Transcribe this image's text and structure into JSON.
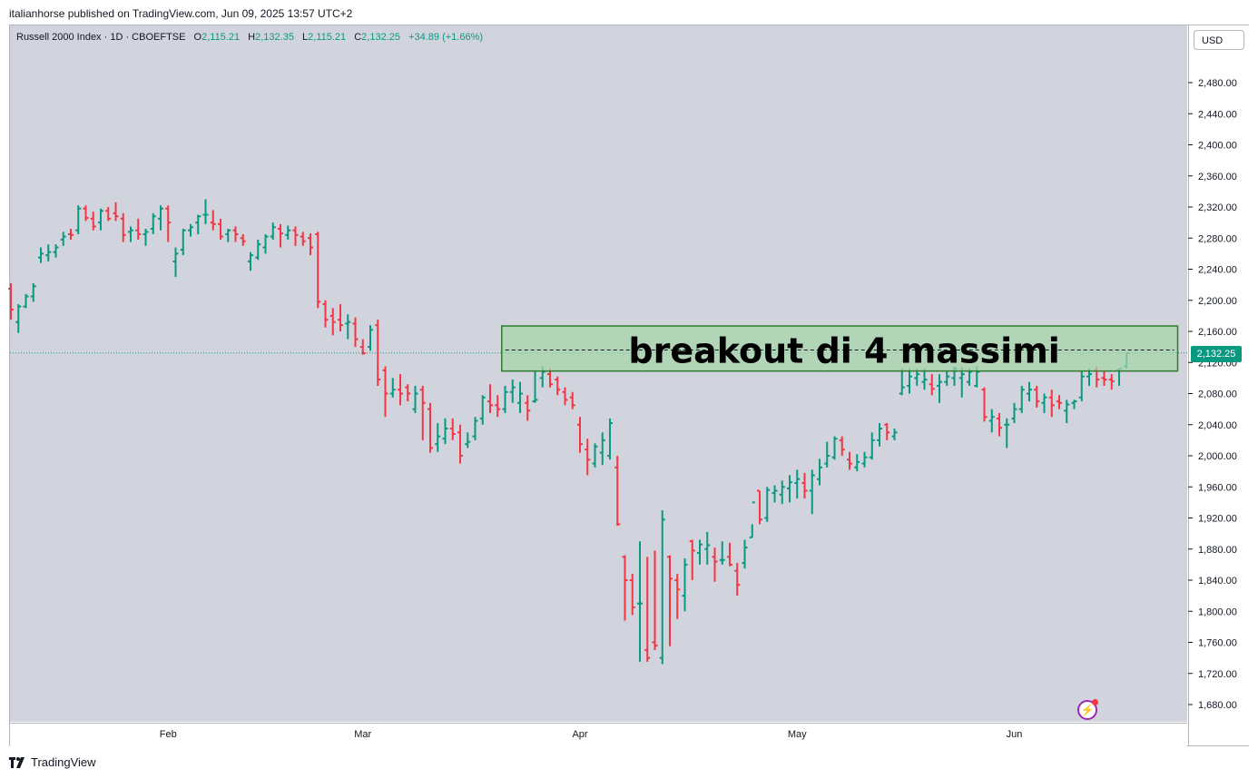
{
  "header": {
    "publisher": "italianhorse published on TradingView.com, Jun 09, 2025 13:57 UTC+2"
  },
  "legend": {
    "symbol": "Russell 2000 Index · 1D · CBOEFTSE",
    "o_label": "O",
    "o_value": "2,115.21",
    "h_label": "H",
    "h_value": "2,132.35",
    "l_label": "L",
    "l_value": "2,115.21",
    "c_label": "C",
    "c_value": "2,132.25",
    "change": "+34.89 (+1.66%)"
  },
  "currency_button": "USD",
  "last_price_tag": "2,132.25",
  "footer": {
    "brand": "TradingView"
  },
  "icons": {
    "alert": "lightning-icon",
    "logo": "tradingview-logo-icon"
  },
  "colors": {
    "up": "#089981",
    "down": "#f23645",
    "plot_bg": "#d1d4dc",
    "zone_fill": "#a5d6a7",
    "zone_border": "#2e7d32"
  },
  "chart_data": {
    "type": "ohlc-bar",
    "ylim": [
      1650,
      2520
    ],
    "y_ticks": [
      "2,480.00",
      "2,440.00",
      "2,400.00",
      "2,360.00",
      "2,320.00",
      "2,280.00",
      "2,240.00",
      "2,200.00",
      "2,160.00",
      "2,120.00",
      "2,080.00",
      "2,040.00",
      "2,000.00",
      "1,960.00",
      "1,920.00",
      "1,880.00",
      "1,840.00",
      "1,800.00",
      "1,760.00",
      "1,720.00",
      "1,680.00"
    ],
    "x_labels": [
      {
        "label": "Feb",
        "index": 21
      },
      {
        "label": "Mar",
        "index": 47
      },
      {
        "label": "Apr",
        "index": 76
      },
      {
        "label": "May",
        "index": 105
      },
      {
        "label": "Jun",
        "index": 134
      }
    ],
    "last_price": 2132.25,
    "annotation": {
      "text": "breakout di 4 massimi",
      "price_top": 2167,
      "price_bottom": 2109,
      "dashed_level": 2136,
      "start_index": 67,
      "end_index": 150
    },
    "bars": [
      [
        2215,
        2222,
        2175,
        2188
      ],
      [
        2172,
        2195,
        2158,
        2192
      ],
      [
        2192,
        2208,
        2190,
        2205
      ],
      [
        2205,
        2222,
        2198,
        2218
      ],
      [
        2255,
        2268,
        2248,
        2260
      ],
      [
        2258,
        2272,
        2250,
        2262
      ],
      [
        2262,
        2272,
        2255,
        2268
      ],
      [
        2278,
        2288,
        2270,
        2282
      ],
      [
        2285,
        2292,
        2278,
        2284
      ],
      [
        2290,
        2322,
        2285,
        2318
      ],
      [
        2318,
        2322,
        2302,
        2306
      ],
      [
        2305,
        2314,
        2290,
        2295
      ],
      [
        2300,
        2318,
        2290,
        2315
      ],
      [
        2315,
        2320,
        2302,
        2305
      ],
      [
        2312,
        2326,
        2302,
        2308
      ],
      [
        2305,
        2312,
        2275,
        2284
      ],
      [
        2288,
        2295,
        2275,
        2290
      ],
      [
        2290,
        2305,
        2278,
        2285
      ],
      [
        2285,
        2292,
        2270,
        2288
      ],
      [
        2292,
        2312,
        2285,
        2308
      ],
      [
        2305,
        2322,
        2290,
        2318
      ],
      [
        2318,
        2322,
        2275,
        2300
      ],
      [
        2250,
        2268,
        2230,
        2260
      ],
      [
        2265,
        2292,
        2258,
        2290
      ],
      [
        2290,
        2298,
        2282,
        2294
      ],
      [
        2300,
        2310,
        2285,
        2308
      ],
      [
        2310,
        2330,
        2298,
        2310
      ],
      [
        2300,
        2316,
        2290,
        2298
      ],
      [
        2298,
        2305,
        2278,
        2282
      ],
      [
        2285,
        2292,
        2275,
        2290
      ],
      [
        2290,
        2295,
        2275,
        2285
      ],
      [
        2280,
        2285,
        2270,
        2276
      ],
      [
        2250,
        2262,
        2238,
        2258
      ],
      [
        2255,
        2278,
        2252,
        2272
      ],
      [
        2268,
        2285,
        2260,
        2282
      ],
      [
        2282,
        2300,
        2278,
        2294
      ],
      [
        2292,
        2298,
        2268,
        2286
      ],
      [
        2284,
        2296,
        2278,
        2290
      ],
      [
        2290,
        2295,
        2270,
        2284
      ],
      [
        2282,
        2288,
        2270,
        2276
      ],
      [
        2280,
        2286,
        2258,
        2268
      ],
      [
        2285,
        2288,
        2190,
        2198
      ],
      [
        2195,
        2200,
        2165,
        2175
      ],
      [
        2180,
        2190,
        2155,
        2172
      ],
      [
        2175,
        2195,
        2160,
        2168
      ],
      [
        2170,
        2182,
        2150,
        2172
      ],
      [
        2170,
        2178,
        2140,
        2150
      ],
      [
        2140,
        2150,
        2130,
        2132
      ],
      [
        2140,
        2168,
        2135,
        2162
      ],
      [
        2168,
        2175,
        2090,
        2098
      ],
      [
        2110,
        2115,
        2050,
        2080
      ],
      [
        2080,
        2100,
        2075,
        2085
      ],
      [
        2085,
        2105,
        2065,
        2080
      ],
      [
        2088,
        2092,
        2070,
        2080
      ],
      [
        2060,
        2090,
        2055,
        2080
      ],
      [
        2085,
        2090,
        2020,
        2068
      ],
      [
        2060,
        2068,
        2004,
        2010
      ],
      [
        2015,
        2042,
        2005,
        2025
      ],
      [
        2022,
        2048,
        2015,
        2035
      ],
      [
        2035,
        2048,
        2020,
        2028
      ],
      [
        2030,
        2040,
        1990,
        2000
      ],
      [
        2015,
        2030,
        2010,
        2018
      ],
      [
        2025,
        2050,
        2020,
        2045
      ],
      [
        2048,
        2078,
        2040,
        2075
      ],
      [
        2070,
        2092,
        2055,
        2065
      ],
      [
        2065,
        2078,
        2050,
        2060
      ],
      [
        2060,
        2090,
        2055,
        2082
      ],
      [
        2082,
        2098,
        2068,
        2088
      ],
      [
        2068,
        2095,
        2055,
        2080
      ],
      [
        2068,
        2078,
        2045,
        2058
      ],
      [
        2070,
        2110,
        2068,
        2072
      ],
      [
        2100,
        2115,
        2088,
        2108
      ],
      [
        2105,
        2112,
        2088,
        2092
      ],
      [
        2098,
        2102,
        2078,
        2085
      ],
      [
        2082,
        2088,
        2065,
        2072
      ],
      [
        2075,
        2082,
        2060,
        2065
      ],
      [
        2040,
        2050,
        2004,
        2015
      ],
      [
        2008,
        2022,
        1975,
        1995
      ],
      [
        1990,
        2016,
        1985,
        2012
      ],
      [
        2004,
        2030,
        1988,
        2020
      ],
      [
        2000,
        2048,
        1995,
        2042
      ],
      [
        1985,
        2000,
        1910,
        1912
      ],
      [
        1870,
        1872,
        1788,
        1840
      ],
      [
        1840,
        1848,
        1795,
        1805
      ],
      [
        1810,
        1890,
        1735,
        1810
      ],
      [
        1750,
        1870,
        1735,
        1740
      ],
      [
        1760,
        1878,
        1750,
        1756
      ],
      [
        1740,
        1930,
        1732,
        1918
      ],
      [
        1870,
        1872,
        1755,
        1842
      ],
      [
        1840,
        1848,
        1790,
        1828
      ],
      [
        1820,
        1868,
        1800,
        1860
      ],
      [
        1890,
        1892,
        1840,
        1878
      ],
      [
        1875,
        1892,
        1860,
        1886
      ],
      [
        1880,
        1902,
        1860,
        1885
      ],
      [
        1870,
        1882,
        1838,
        1864
      ],
      [
        1866,
        1890,
        1860,
        1866
      ],
      [
        1870,
        1888,
        1858,
        1860
      ],
      [
        1852,
        1862,
        1820,
        1834
      ],
      [
        1862,
        1892,
        1855,
        1882
      ],
      [
        1895,
        1895,
        1912,
        1940
      ],
      [
        1955,
        1955,
        1912,
        1918
      ],
      [
        1920,
        1960,
        1915,
        1956
      ],
      [
        1952,
        1962,
        1940,
        1955
      ],
      [
        1950,
        1968,
        1938,
        1960
      ],
      [
        1958,
        1975,
        1940,
        1966
      ],
      [
        1965,
        1982,
        1945,
        1970
      ],
      [
        1965,
        1978,
        1945,
        1955
      ],
      [
        1955,
        1982,
        1925,
        1975
      ],
      [
        1970,
        1996,
        1962,
        1985
      ],
      [
        1990,
        2018,
        1985,
        2000
      ],
      [
        1998,
        2025,
        1995,
        2022
      ],
      [
        2020,
        2025,
        2000,
        2008
      ],
      [
        1995,
        2005,
        1982,
        1990
      ],
      [
        1985,
        2002,
        1980,
        1992
      ],
      [
        1990,
        2005,
        1985,
        1998
      ],
      [
        1998,
        2030,
        1995,
        2020
      ],
      [
        2020,
        2042,
        2012,
        2035
      ],
      [
        2040,
        2042,
        2020,
        2030
      ],
      [
        2025,
        2035,
        2020,
        2030
      ],
      [
        2080,
        2112,
        2078,
        2088
      ],
      [
        2090,
        2112,
        2080,
        2102
      ],
      [
        2100,
        2112,
        2090,
        2105
      ],
      [
        2095,
        2112,
        2085,
        2098
      ],
      [
        2092,
        2105,
        2078,
        2086
      ],
      [
        2090,
        2105,
        2068,
        2095
      ],
      [
        2095,
        2110,
        2090,
        2102
      ],
      [
        2100,
        2115,
        2090,
        2112
      ],
      [
        2100,
        2114,
        2075,
        2105
      ],
      [
        2095,
        2112,
        2090,
        2108
      ],
      [
        2090,
        2115,
        2088,
        2108
      ],
      [
        2085,
        2088,
        2044,
        2050
      ],
      [
        2045,
        2060,
        2030,
        2050
      ],
      [
        2048,
        2055,
        2025,
        2036
      ],
      [
        2040,
        2048,
        2010,
        2040
      ],
      [
        2048,
        2068,
        2042,
        2060
      ],
      [
        2060,
        2090,
        2055,
        2085
      ],
      [
        2080,
        2095,
        2070,
        2085
      ],
      [
        2085,
        2090,
        2062,
        2070
      ],
      [
        2068,
        2080,
        2055,
        2075
      ],
      [
        2075,
        2085,
        2050,
        2065
      ],
      [
        2070,
        2078,
        2060,
        2068
      ],
      [
        2058,
        2072,
        2042,
        2066
      ],
      [
        2068,
        2072,
        2060,
        2070
      ],
      [
        2075,
        2110,
        2070,
        2102
      ],
      [
        2102,
        2112,
        2090,
        2105
      ],
      [
        2110,
        2115,
        2088,
        2098
      ],
      [
        2100,
        2110,
        2090,
        2098
      ],
      [
        2098,
        2105,
        2085,
        2096
      ],
      [
        2110,
        2112,
        2090,
        2112
      ],
      [
        2115,
        2132,
        2112,
        2132
      ]
    ]
  }
}
